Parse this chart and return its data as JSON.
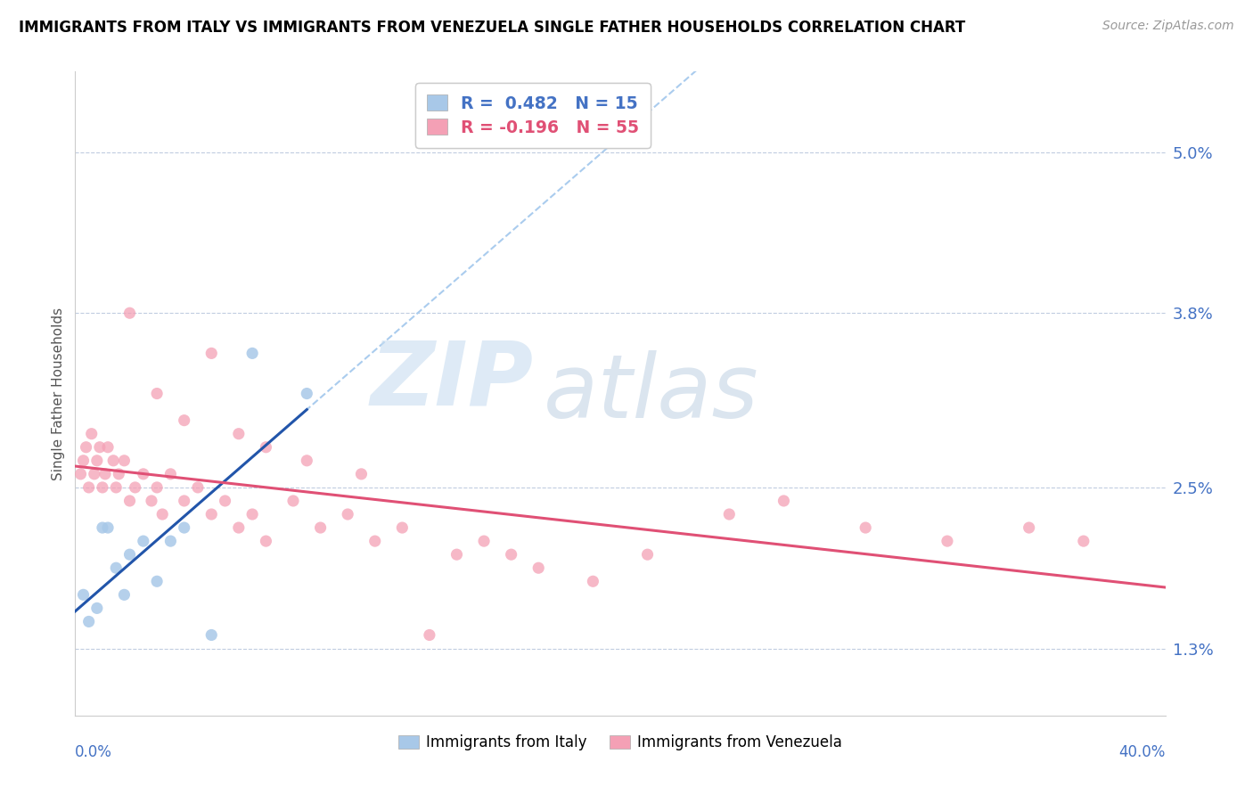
{
  "title": "IMMIGRANTS FROM ITALY VS IMMIGRANTS FROM VENEZUELA SINGLE FATHER HOUSEHOLDS CORRELATION CHART",
  "source": "Source: ZipAtlas.com",
  "ylabel": "Single Father Households",
  "yticks": [
    1.3,
    2.5,
    3.8,
    5.0
  ],
  "ytick_labels": [
    "1.3%",
    "2.5%",
    "3.8%",
    "5.0%"
  ],
  "xlim": [
    0.0,
    40.0
  ],
  "ylim": [
    0.8,
    5.6
  ],
  "legend_italy": "R =  0.482   N = 15",
  "legend_venezuela": "R = -0.196   N = 55",
  "italy_color": "#a8c8e8",
  "venezuela_color": "#f4a0b5",
  "italy_line_color": "#2255aa",
  "venezuela_line_color": "#e05075",
  "trend_ext_color": "#aaccee",
  "italy_x": [
    0.3,
    0.5,
    0.8,
    1.0,
    1.2,
    1.5,
    1.8,
    2.0,
    2.5,
    3.0,
    3.5,
    4.0,
    5.0,
    6.5,
    8.5
  ],
  "italy_y": [
    1.7,
    1.5,
    1.6,
    2.2,
    2.2,
    1.9,
    1.7,
    2.0,
    2.1,
    1.8,
    2.1,
    2.2,
    1.4,
    3.5,
    3.2
  ],
  "venezuela_x": [
    0.2,
    0.3,
    0.4,
    0.5,
    0.6,
    0.7,
    0.8,
    0.9,
    1.0,
    1.1,
    1.2,
    1.4,
    1.5,
    1.6,
    1.8,
    2.0,
    2.2,
    2.5,
    2.8,
    3.0,
    3.2,
    3.5,
    4.0,
    4.5,
    5.0,
    5.5,
    6.0,
    6.5,
    7.0,
    8.0,
    9.0,
    10.0,
    11.0,
    12.0,
    14.0,
    15.0,
    17.0,
    19.0,
    21.0,
    24.0,
    26.0,
    29.0,
    32.0,
    35.0,
    37.0,
    2.0,
    3.0,
    4.0,
    5.0,
    6.0,
    7.0,
    8.5,
    10.5,
    13.0,
    16.0
  ],
  "venezuela_y": [
    2.6,
    2.7,
    2.8,
    2.5,
    2.9,
    2.6,
    2.7,
    2.8,
    2.5,
    2.6,
    2.8,
    2.7,
    2.5,
    2.6,
    2.7,
    2.4,
    2.5,
    2.6,
    2.4,
    2.5,
    2.3,
    2.6,
    2.4,
    2.5,
    2.3,
    2.4,
    2.2,
    2.3,
    2.1,
    2.4,
    2.2,
    2.3,
    2.1,
    2.2,
    2.0,
    2.1,
    1.9,
    1.8,
    2.0,
    2.3,
    2.4,
    2.2,
    2.1,
    2.2,
    2.1,
    3.8,
    3.2,
    3.0,
    3.5,
    2.9,
    2.8,
    2.7,
    2.6,
    1.4,
    2.0
  ],
  "italy_line_x0": 0.0,
  "italy_line_x1": 8.5,
  "italy_ext_x0": 8.5,
  "italy_ext_x1": 40.0,
  "italy_R": 0.482,
  "venezuela_R": -0.196,
  "watermark_zip_color": "#c8ddf0",
  "watermark_atlas_color": "#b8cce0"
}
